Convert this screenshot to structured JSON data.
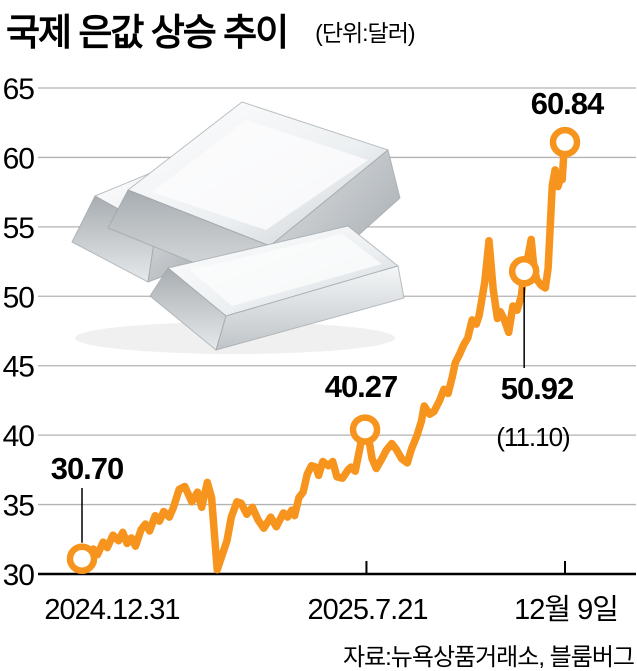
{
  "header": {
    "title": "국제 은값 상승 추이",
    "unit": "(단위:달러)"
  },
  "footer": {
    "source": "자료:뉴욕상품거래소, 블룸버그"
  },
  "decoration": {
    "icon": "silver-ingots-stack"
  },
  "chart_data": {
    "type": "line",
    "title": "국제 은값 상승 추이",
    "unit_label": "(단위:달러)",
    "ylim": [
      30,
      65
    ],
    "yticks": [
      30,
      35,
      40,
      45,
      50,
      55,
      60,
      65
    ],
    "grid": "horizontal",
    "legend": "none",
    "line_color": "#F7941E",
    "grid_color": "#B3B3B3",
    "axis_color": "#000000",
    "marker_fill": "#FFFFFF",
    "x_unit": "days since 2024-12-31",
    "x_axis": {
      "start_label": "2024.12.31",
      "end_label": "12월 9일",
      "tick_labels": [
        {
          "label": "2024.12.31",
          "day": 0
        },
        {
          "label": "2025.7.21",
          "day": 202
        },
        {
          "label": "12월 9일",
          "day": 343
        }
      ]
    },
    "series": [
      {
        "name": "국제 은값(달러)",
        "points": [
          [
            0,
            31.1
          ],
          [
            4,
            31.3
          ],
          [
            8,
            31.8
          ],
          [
            11,
            31.4
          ],
          [
            15,
            32.3
          ],
          [
            18,
            31.9
          ],
          [
            22,
            32.8
          ],
          [
            26,
            32.4
          ],
          [
            29,
            33.0
          ],
          [
            32,
            32.2
          ],
          [
            35,
            32.6
          ],
          [
            38,
            32.0
          ],
          [
            42,
            33.2
          ],
          [
            45,
            33.6
          ],
          [
            48,
            33.1
          ],
          [
            52,
            34.2
          ],
          [
            55,
            33.8
          ],
          [
            58,
            34.5
          ],
          [
            62,
            34.1
          ],
          [
            65,
            34.8
          ],
          [
            69,
            36.1
          ],
          [
            73,
            36.3
          ],
          [
            78,
            35.2
          ],
          [
            82,
            35.9
          ],
          [
            85,
            34.8
          ],
          [
            89,
            36.6
          ],
          [
            92,
            35.5
          ],
          [
            96,
            30.3
          ],
          [
            99,
            31.2
          ],
          [
            103,
            32.4
          ],
          [
            106,
            34.1
          ],
          [
            110,
            35.2
          ],
          [
            113,
            35.1
          ],
          [
            117,
            34.3
          ],
          [
            121,
            34.8
          ],
          [
            125,
            33.9
          ],
          [
            129,
            33.3
          ],
          [
            134,
            34.1
          ],
          [
            138,
            33.4
          ],
          [
            143,
            34.4
          ],
          [
            146,
            34.1
          ],
          [
            149,
            34.6
          ],
          [
            151,
            34.2
          ],
          [
            154,
            35.5
          ],
          [
            157,
            35.9
          ],
          [
            160,
            37.2
          ],
          [
            163,
            37.8
          ],
          [
            166,
            37.7
          ],
          [
            168,
            37.1
          ],
          [
            171,
            38.1
          ],
          [
            175,
            37.8
          ],
          [
            178,
            38.1
          ],
          [
            181,
            37.0
          ],
          [
            185,
            36.9
          ],
          [
            189,
            37.5
          ],
          [
            191,
            37.7
          ],
          [
            194,
            37.4
          ],
          [
            197,
            38.9
          ],
          [
            199,
            39.9
          ],
          [
            201,
            40.4
          ],
          [
            204,
            39.5
          ],
          [
            206,
            38.3
          ],
          [
            209,
            37.6
          ],
          [
            213,
            38.3
          ],
          [
            216,
            38.9
          ],
          [
            220,
            39.4
          ],
          [
            223,
            39.0
          ],
          [
            227,
            38.3
          ],
          [
            231,
            38.0
          ],
          [
            234,
            39.0
          ],
          [
            238,
            40.0
          ],
          [
            241,
            41.0
          ],
          [
            243,
            42.1
          ],
          [
            247,
            41.5
          ],
          [
            250,
            41.7
          ],
          [
            254,
            42.5
          ],
          [
            257,
            43.3
          ],
          [
            260,
            43.0
          ],
          [
            263,
            44.2
          ],
          [
            265,
            45.2
          ],
          [
            268,
            45.8
          ],
          [
            271,
            46.5
          ],
          [
            274,
            47.0
          ],
          [
            277,
            48.3
          ],
          [
            280,
            48.0
          ],
          [
            282,
            48.6
          ],
          [
            286,
            51.0
          ],
          [
            289,
            54.0
          ],
          [
            292,
            50.5
          ],
          [
            295,
            48.4
          ],
          [
            297,
            48.9
          ],
          [
            300,
            48.3
          ],
          [
            303,
            47.4
          ],
          [
            306,
            49.3
          ],
          [
            309,
            49.0
          ],
          [
            312,
            50.0
          ],
          [
            314,
            51.8
          ],
          [
            317,
            53.0
          ],
          [
            319,
            54.1
          ],
          [
            321,
            52.0
          ],
          [
            323,
            51.2
          ],
          [
            326,
            50.8
          ],
          [
            329,
            50.6
          ],
          [
            331,
            52.0
          ],
          [
            333,
            56.0
          ],
          [
            334,
            58.0
          ],
          [
            336,
            59.1
          ],
          [
            338,
            57.9
          ],
          [
            340,
            58.6
          ],
          [
            341,
            58.4
          ],
          [
            342,
            60.0
          ],
          [
            343,
            61.1
          ]
        ]
      }
    ],
    "annotations": [
      {
        "label": "30.70",
        "value": 30.7,
        "day": 0
      },
      {
        "label": "40.27",
        "value": 40.27,
        "day": 201
      },
      {
        "label": "50.92",
        "sub_label": "(11.10)",
        "value": 50.92,
        "day": 314
      },
      {
        "label": "60.84",
        "value": 60.84,
        "day": 343
      }
    ]
  }
}
